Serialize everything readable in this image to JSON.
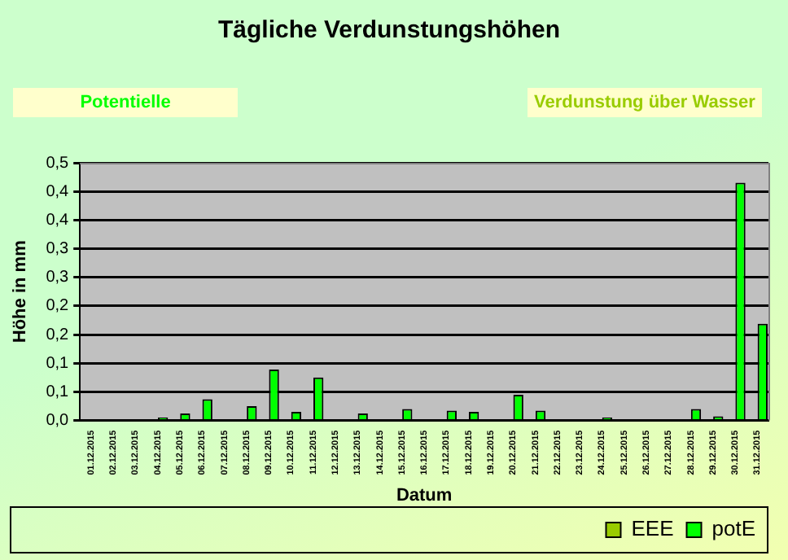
{
  "chart_data": {
    "type": "bar",
    "title": "Tägliche Verdunstungshöhen",
    "xlabel": "Datum",
    "ylabel": "Höhe in mm",
    "annotations": [
      "Potentielle",
      "Verdunstung über Wasser"
    ],
    "categories": [
      "01.12.2015",
      "02.12.2015",
      "03.12.2015",
      "04.12.2015",
      "05.12.2015",
      "06.12.2015",
      "07.12.2015",
      "08.12.2015",
      "09.12.2015",
      "10.12.2015",
      "11.12.2015",
      "12.12.2015",
      "13.12.2015",
      "14.12.2015",
      "15.12.2015",
      "16.12.2015",
      "17.12.2015",
      "18.12.2015",
      "19.12.2015",
      "20.12.2015",
      "21.12.2015",
      "22.12.2015",
      "23.12.2015",
      "24.12.2015",
      "25.12.2015",
      "26.12.2015",
      "27.12.2015",
      "28.12.2015",
      "29.12.2015",
      "30.12.2015",
      "31.12.2015"
    ],
    "series": [
      {
        "name": "EEE",
        "color": "#99cc00",
        "values": [
          0,
          0,
          0,
          0,
          0,
          0,
          0,
          0,
          0,
          0,
          0,
          0,
          0,
          0,
          0,
          0,
          0,
          0,
          0,
          0,
          0,
          0,
          0,
          0,
          0,
          0,
          0,
          0,
          0,
          0,
          0
        ]
      },
      {
        "name": "potE",
        "color": "#00ff00",
        "values": [
          0,
          0,
          0,
          0.005,
          0.012,
          0.037,
          0,
          0.025,
          0.089,
          0.015,
          0.075,
          0,
          0.012,
          0,
          0.02,
          0,
          0.017,
          0.015,
          0,
          0.045,
          0.017,
          0,
          0,
          0.005,
          0,
          0,
          0,
          0.02,
          0.007,
          0.415,
          0.169
        ]
      }
    ],
    "ylim": [
      0,
      0.45
    ],
    "yticks": [
      {
        "value": 0,
        "label": "0,0"
      },
      {
        "value": 0.05,
        "label": "0,1"
      },
      {
        "value": 0.1,
        "label": "0,1"
      },
      {
        "value": 0.15,
        "label": "0,2"
      },
      {
        "value": 0.2,
        "label": "0,2"
      },
      {
        "value": 0.25,
        "label": "0,3"
      },
      {
        "value": 0.3,
        "label": "0,3"
      },
      {
        "value": 0.35,
        "label": "0,4"
      },
      {
        "value": 0.4,
        "label": "0,4"
      },
      {
        "value": 0.45,
        "label": "0,5"
      }
    ],
    "grid": "y",
    "legend": "bottom right"
  }
}
